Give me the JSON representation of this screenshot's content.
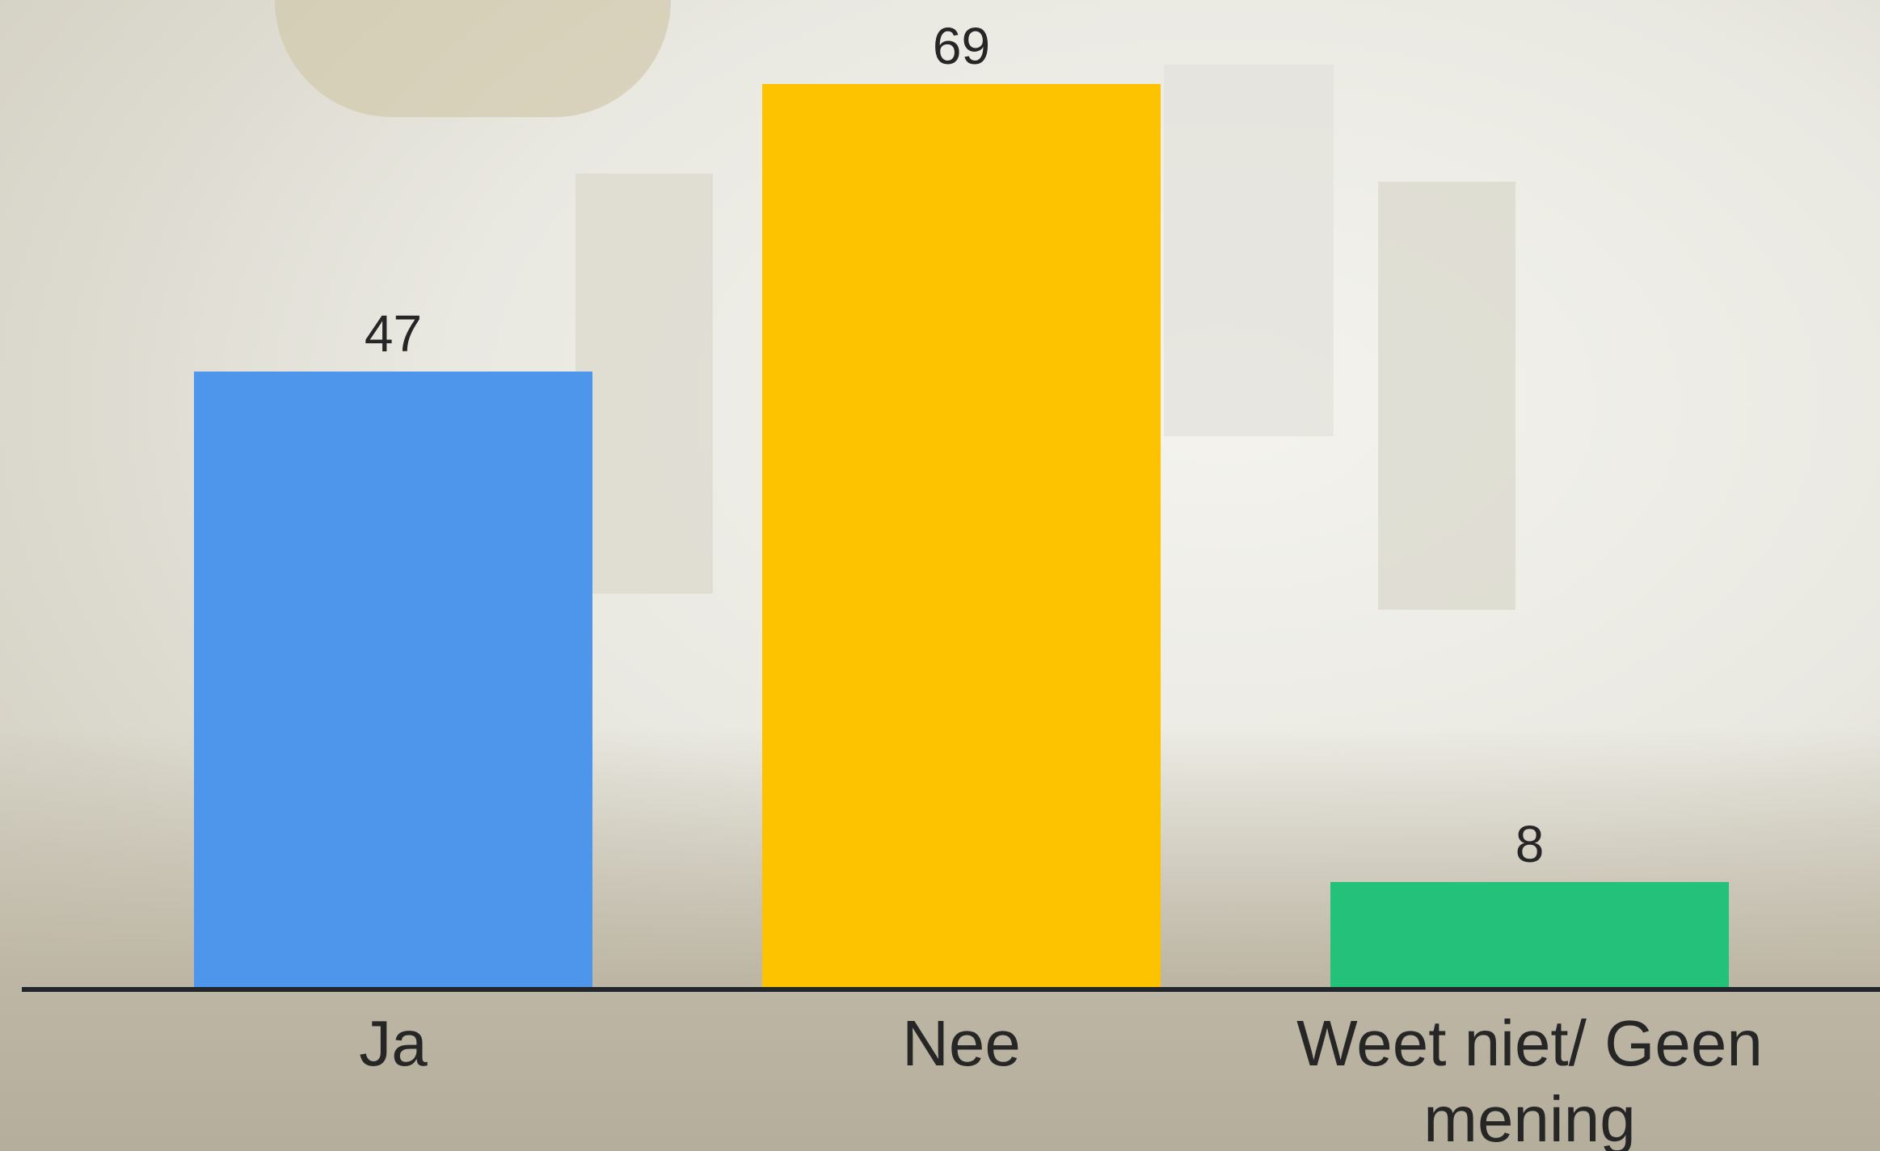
{
  "chart_data": {
    "type": "bar",
    "categories": [
      "Ja",
      "Nee",
      "Weet niet/ Geen mening"
    ],
    "values": [
      47,
      69,
      8
    ],
    "colors": [
      "#4d96ec",
      "#fdc300",
      "#24c17a"
    ]
  }
}
